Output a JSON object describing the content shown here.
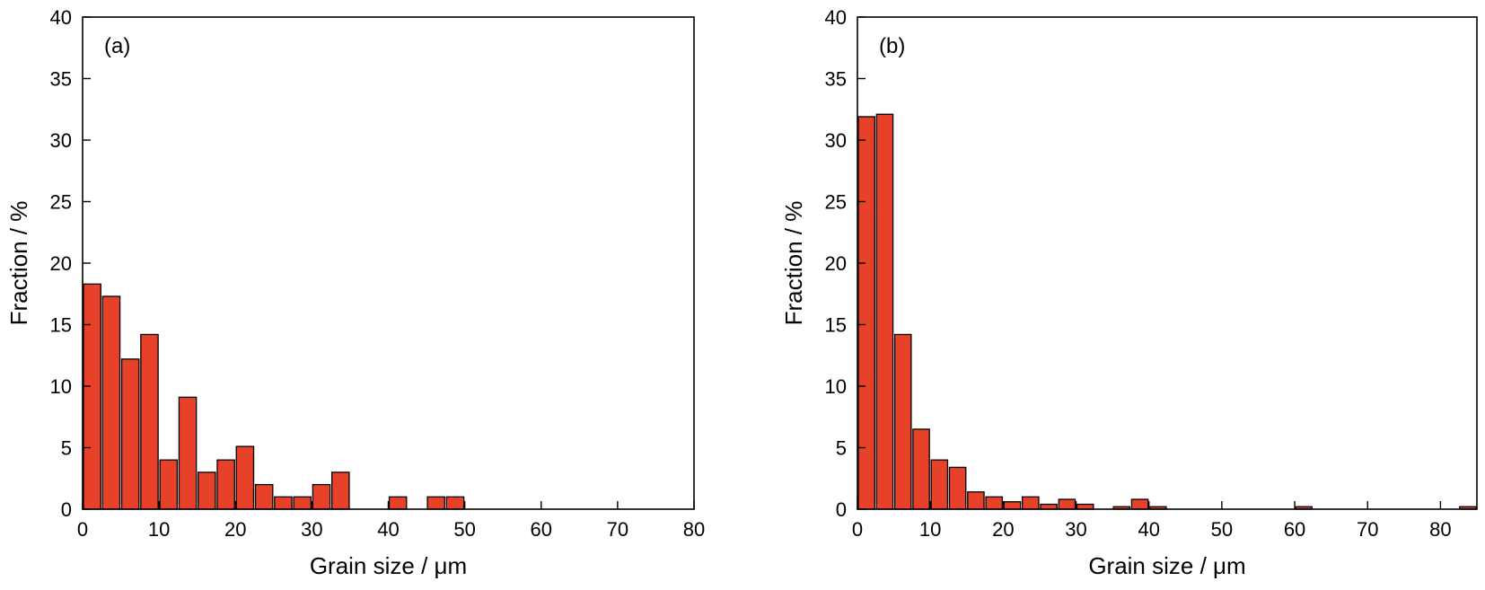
{
  "chart_data": [
    {
      "type": "bar",
      "panel_label": "(a)",
      "xlabel": "Grain size / μm",
      "ylabel": "Fraction / %",
      "xlim": [
        0,
        80
      ],
      "ylim": [
        0,
        40
      ],
      "xticks": [
        0,
        10,
        20,
        30,
        40,
        50,
        60,
        70,
        80
      ],
      "yticks": [
        0,
        5,
        10,
        15,
        20,
        25,
        30,
        35,
        40
      ],
      "bin_width": 2.5,
      "bar_color": "#e8412a",
      "bins": [
        {
          "x": 1.25,
          "value": 18.3
        },
        {
          "x": 3.75,
          "value": 17.3
        },
        {
          "x": 6.25,
          "value": 12.2
        },
        {
          "x": 8.75,
          "value": 14.2
        },
        {
          "x": 11.25,
          "value": 4.0
        },
        {
          "x": 13.75,
          "value": 9.1
        },
        {
          "x": 16.25,
          "value": 3.0
        },
        {
          "x": 18.75,
          "value": 4.0
        },
        {
          "x": 21.25,
          "value": 5.1
        },
        {
          "x": 23.75,
          "value": 2.0
        },
        {
          "x": 26.25,
          "value": 1.0
        },
        {
          "x": 28.75,
          "value": 1.0
        },
        {
          "x": 31.25,
          "value": 2.0
        },
        {
          "x": 33.75,
          "value": 3.0
        },
        {
          "x": 41.25,
          "value": 1.0
        },
        {
          "x": 46.25,
          "value": 1.0
        },
        {
          "x": 48.75,
          "value": 1.0
        }
      ]
    },
    {
      "type": "bar",
      "panel_label": "(b)",
      "xlabel": "Grain size / μm",
      "ylabel": "Fraction / %",
      "xlim": [
        0,
        85
      ],
      "ylim": [
        0,
        40
      ],
      "xticks": [
        0,
        10,
        20,
        30,
        40,
        50,
        60,
        70,
        80
      ],
      "yticks": [
        0,
        5,
        10,
        15,
        20,
        25,
        30,
        35,
        40
      ],
      "bin_width": 2.5,
      "bar_color": "#e8412a",
      "bins": [
        {
          "x": 1.25,
          "value": 31.9
        },
        {
          "x": 3.75,
          "value": 32.1
        },
        {
          "x": 6.25,
          "value": 14.2
        },
        {
          "x": 8.75,
          "value": 6.5
        },
        {
          "x": 11.25,
          "value": 4.0
        },
        {
          "x": 13.75,
          "value": 3.4
        },
        {
          "x": 16.25,
          "value": 1.4
        },
        {
          "x": 18.75,
          "value": 1.0
        },
        {
          "x": 21.25,
          "value": 0.6
        },
        {
          "x": 23.75,
          "value": 1.0
        },
        {
          "x": 26.25,
          "value": 0.4
        },
        {
          "x": 28.75,
          "value": 0.8
        },
        {
          "x": 31.25,
          "value": 0.4
        },
        {
          "x": 36.25,
          "value": 0.2
        },
        {
          "x": 38.75,
          "value": 0.8
        },
        {
          "x": 41.25,
          "value": 0.2
        },
        {
          "x": 61.25,
          "value": 0.2
        },
        {
          "x": 83.75,
          "value": 0.2
        }
      ]
    }
  ]
}
